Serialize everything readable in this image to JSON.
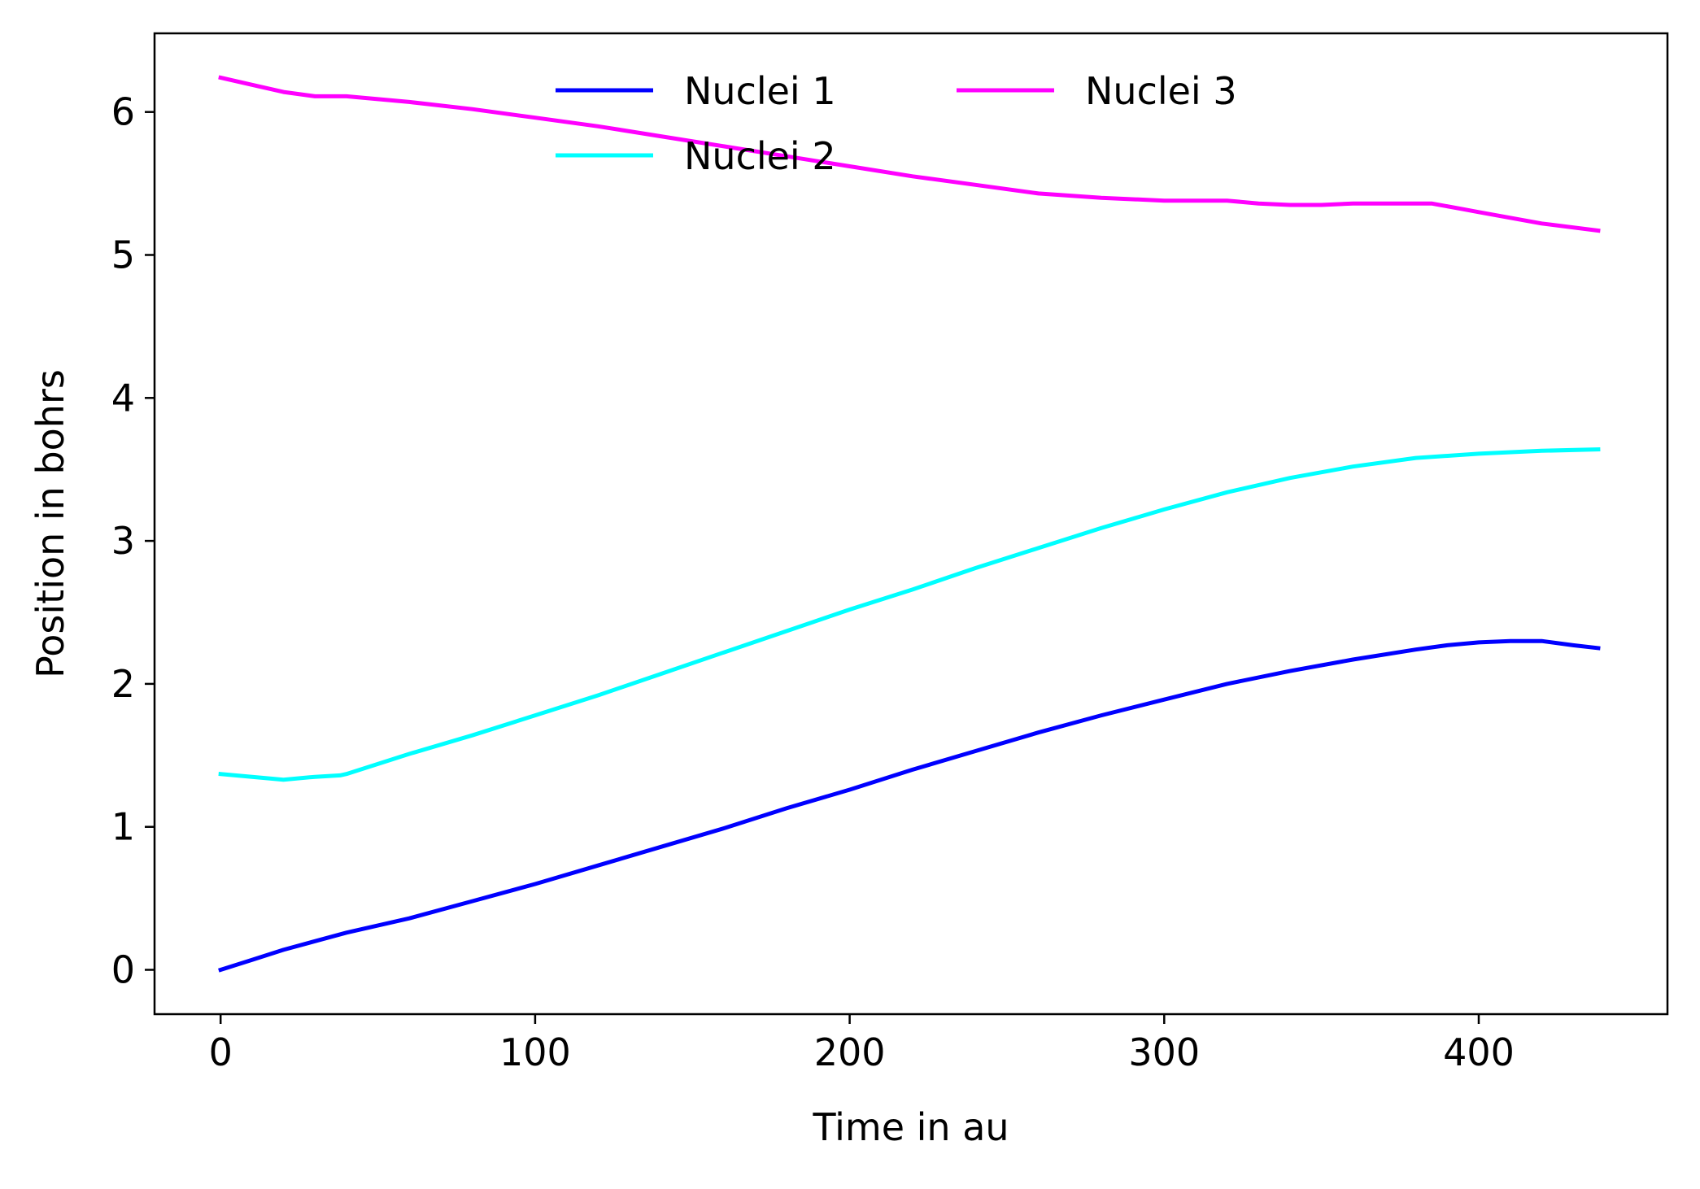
{
  "chart_data": {
    "type": "line",
    "title": "",
    "xlabel": "Time in au",
    "ylabel": "Position in bohrs",
    "xlim": [
      -21,
      460
    ],
    "ylim": [
      -0.31,
      6.55
    ],
    "xticks": [
      0,
      100,
      200,
      300,
      400
    ],
    "yticks": [
      0,
      1,
      2,
      3,
      4,
      5,
      6
    ],
    "grid": false,
    "legend": {
      "placement": "upper-center",
      "columns": 2
    },
    "series": [
      {
        "name": "Nuclei 1",
        "color": "#0000ff",
        "x": [
          0,
          10,
          20,
          30,
          40,
          60,
          80,
          100,
          120,
          140,
          160,
          180,
          200,
          220,
          240,
          260,
          280,
          300,
          320,
          340,
          360,
          380,
          390,
          400,
          410,
          420,
          430,
          438
        ],
        "y": [
          0.0,
          0.07,
          0.14,
          0.2,
          0.26,
          0.36,
          0.48,
          0.6,
          0.73,
          0.86,
          0.99,
          1.13,
          1.26,
          1.4,
          1.53,
          1.66,
          1.78,
          1.89,
          2.0,
          2.09,
          2.17,
          2.24,
          2.27,
          2.29,
          2.3,
          2.3,
          2.27,
          2.25
        ]
      },
      {
        "name": "Nuclei 2",
        "color": "#00ffff",
        "x": [
          0,
          10,
          20,
          30,
          38,
          40,
          60,
          80,
          100,
          120,
          140,
          160,
          180,
          200,
          220,
          240,
          260,
          280,
          300,
          320,
          340,
          360,
          380,
          400,
          420,
          438
        ],
        "y": [
          1.37,
          1.35,
          1.33,
          1.35,
          1.36,
          1.37,
          1.51,
          1.64,
          1.78,
          1.92,
          2.07,
          2.22,
          2.37,
          2.52,
          2.66,
          2.81,
          2.95,
          3.09,
          3.22,
          3.34,
          3.44,
          3.52,
          3.58,
          3.61,
          3.63,
          3.64
        ]
      },
      {
        "name": "Nuclei 3",
        "color": "#ff00ff",
        "x": [
          0,
          10,
          20,
          30,
          40,
          60,
          80,
          100,
          120,
          140,
          160,
          180,
          200,
          220,
          240,
          260,
          280,
          300,
          310,
          320,
          330,
          340,
          350,
          360,
          370,
          380,
          385,
          395,
          400,
          420,
          438
        ],
        "y": [
          6.24,
          6.19,
          6.14,
          6.11,
          6.11,
          6.07,
          6.02,
          5.96,
          5.9,
          5.83,
          5.76,
          5.69,
          5.62,
          5.55,
          5.49,
          5.43,
          5.4,
          5.38,
          5.38,
          5.38,
          5.36,
          5.35,
          5.35,
          5.36,
          5.36,
          5.36,
          5.36,
          5.32,
          5.3,
          5.22,
          5.17
        ]
      }
    ]
  }
}
